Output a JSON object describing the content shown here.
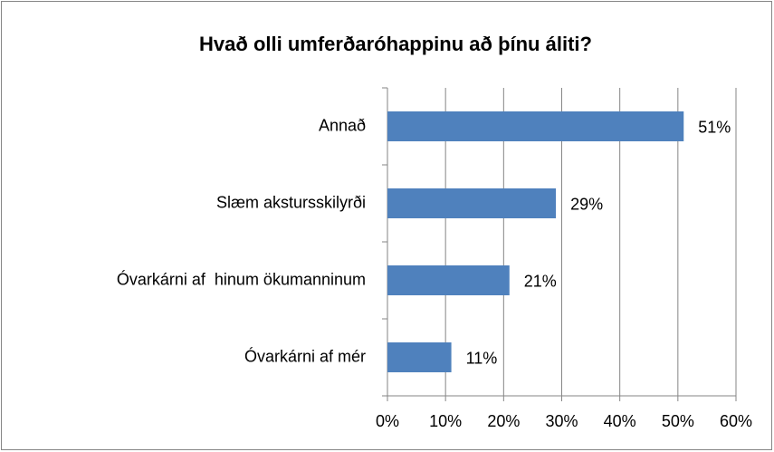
{
  "chart_data": {
    "type": "bar",
    "orientation": "horizontal",
    "title": "Hvað olli umferðaróhappinu að þínu áliti?",
    "categories": [
      "Annað",
      "Slæm akstursskilyrði",
      "Óvarkárni af  hinum ökumanninum",
      "Óvarkárni af mér"
    ],
    "values": [
      51,
      29,
      21,
      11
    ],
    "value_labels": [
      "51%",
      "29%",
      "21%",
      "11%"
    ],
    "color": "#4f81bd",
    "xlim": [
      0,
      60
    ],
    "xticks": [
      {
        "value": 0,
        "label": "0%"
      },
      {
        "value": 10,
        "label": "10%"
      },
      {
        "value": 20,
        "label": "20%"
      },
      {
        "value": 30,
        "label": "30%"
      },
      {
        "value": 40,
        "label": "40%"
      },
      {
        "value": 50,
        "label": "50%"
      },
      {
        "value": 60,
        "label": "60%"
      }
    ],
    "grid": true
  }
}
